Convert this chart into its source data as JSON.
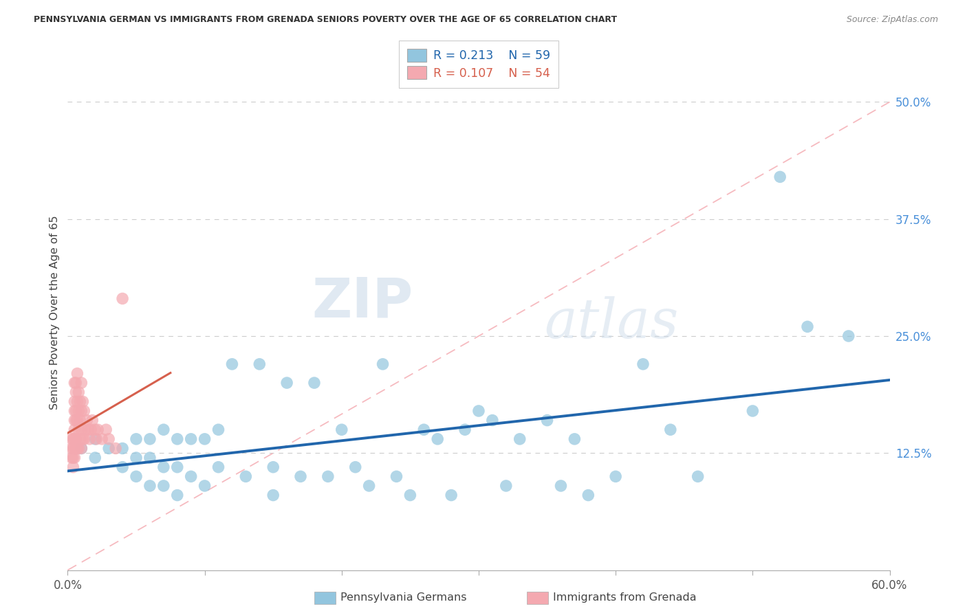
{
  "title": "PENNSYLVANIA GERMAN VS IMMIGRANTS FROM GRENADA SENIORS POVERTY OVER THE AGE OF 65 CORRELATION CHART",
  "source": "Source: ZipAtlas.com",
  "ylabel": "Seniors Poverty Over the Age of 65",
  "xlim": [
    0.0,
    0.6
  ],
  "ylim": [
    0.0,
    0.55
  ],
  "yticks_right": [
    0.0,
    0.125,
    0.25,
    0.375,
    0.5
  ],
  "yticklabels_right": [
    "",
    "12.5%",
    "25.0%",
    "37.5%",
    "50.0%"
  ],
  "R_blue": 0.213,
  "N_blue": 59,
  "R_pink": 0.107,
  "N_pink": 54,
  "color_blue": "#92C5DE",
  "color_pink": "#F4A9B0",
  "line_blue": "#2166AC",
  "line_pink": "#D6604D",
  "line_dashed_color": "#F4A9B0",
  "watermark_zip": "ZIP",
  "watermark_atlas": "atlas",
  "legend_label_blue": "Pennsylvania Germans",
  "legend_label_pink": "Immigrants from Grenada",
  "blue_x": [
    0.01,
    0.02,
    0.02,
    0.03,
    0.04,
    0.04,
    0.05,
    0.05,
    0.05,
    0.06,
    0.06,
    0.06,
    0.07,
    0.07,
    0.07,
    0.08,
    0.08,
    0.08,
    0.09,
    0.09,
    0.1,
    0.1,
    0.11,
    0.11,
    0.12,
    0.13,
    0.14,
    0.15,
    0.15,
    0.16,
    0.17,
    0.18,
    0.19,
    0.2,
    0.21,
    0.22,
    0.23,
    0.24,
    0.25,
    0.26,
    0.27,
    0.28,
    0.29,
    0.3,
    0.31,
    0.32,
    0.33,
    0.35,
    0.36,
    0.37,
    0.38,
    0.4,
    0.42,
    0.44,
    0.46,
    0.5,
    0.52,
    0.54,
    0.57
  ],
  "blue_y": [
    0.13,
    0.14,
    0.12,
    0.13,
    0.13,
    0.11,
    0.14,
    0.12,
    0.1,
    0.14,
    0.12,
    0.09,
    0.15,
    0.11,
    0.09,
    0.14,
    0.11,
    0.08,
    0.14,
    0.1,
    0.14,
    0.09,
    0.15,
    0.11,
    0.22,
    0.1,
    0.22,
    0.11,
    0.08,
    0.2,
    0.1,
    0.2,
    0.1,
    0.15,
    0.11,
    0.09,
    0.22,
    0.1,
    0.08,
    0.15,
    0.14,
    0.08,
    0.15,
    0.17,
    0.16,
    0.09,
    0.14,
    0.16,
    0.09,
    0.14,
    0.08,
    0.1,
    0.22,
    0.15,
    0.1,
    0.17,
    0.42,
    0.26,
    0.25
  ],
  "pink_x": [
    0.003,
    0.003,
    0.003,
    0.004,
    0.004,
    0.004,
    0.004,
    0.005,
    0.005,
    0.005,
    0.005,
    0.005,
    0.005,
    0.005,
    0.005,
    0.006,
    0.006,
    0.006,
    0.006,
    0.006,
    0.006,
    0.007,
    0.007,
    0.007,
    0.007,
    0.008,
    0.008,
    0.008,
    0.008,
    0.009,
    0.009,
    0.009,
    0.01,
    0.01,
    0.01,
    0.01,
    0.011,
    0.011,
    0.012,
    0.012,
    0.013,
    0.014,
    0.015,
    0.016,
    0.017,
    0.018,
    0.02,
    0.021,
    0.022,
    0.025,
    0.028,
    0.03,
    0.035,
    0.04
  ],
  "pink_y": [
    0.13,
    0.14,
    0.12,
    0.14,
    0.13,
    0.12,
    0.11,
    0.2,
    0.18,
    0.17,
    0.16,
    0.15,
    0.14,
    0.13,
    0.12,
    0.2,
    0.19,
    0.17,
    0.16,
    0.14,
    0.13,
    0.21,
    0.18,
    0.16,
    0.13,
    0.19,
    0.17,
    0.15,
    0.13,
    0.18,
    0.16,
    0.14,
    0.2,
    0.17,
    0.15,
    0.13,
    0.18,
    0.14,
    0.17,
    0.14,
    0.15,
    0.16,
    0.15,
    0.14,
    0.15,
    0.16,
    0.15,
    0.14,
    0.15,
    0.14,
    0.15,
    0.14,
    0.13,
    0.29
  ],
  "pink_outlier_x": [
    0.003
  ],
  "pink_outlier_y": [
    0.29
  ]
}
